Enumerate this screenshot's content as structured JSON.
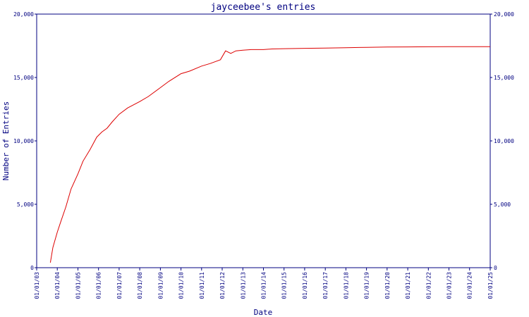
{
  "chart_data": {
    "type": "line",
    "title": "jayceebee's entries",
    "xlabel": "Date",
    "ylabel": "Number of Entries",
    "ylim": [
      0,
      20000
    ],
    "xlim": [
      "2003-01-01",
      "2025-01-01"
    ],
    "yticks": [
      0,
      5000,
      10000,
      15000,
      20000
    ],
    "ytick_labels": [
      "0",
      "5,000",
      "10,000",
      "15,000",
      "20,000"
    ],
    "xticks": [
      "2003-01-01",
      "2004-01-01",
      "2005-01-01",
      "2006-01-01",
      "2007-01-01",
      "2008-01-01",
      "2009-01-01",
      "2010-01-01",
      "2011-01-01",
      "2012-01-01",
      "2013-01-01",
      "2014-01-01",
      "2015-01-01",
      "2016-01-01",
      "2017-01-01",
      "2018-01-01",
      "2019-01-01",
      "2020-01-01",
      "2021-01-01",
      "2022-01-01",
      "2023-01-01",
      "2024-01-01",
      "2025-01-01"
    ],
    "xtick_labels": [
      "01/01/03",
      "01/01/04",
      "01/01/05",
      "01/01/06",
      "01/01/07",
      "01/01/08",
      "01/01/09",
      "01/01/10",
      "01/01/11",
      "01/01/12",
      "01/01/13",
      "01/01/14",
      "01/01/15",
      "01/01/16",
      "01/01/17",
      "01/01/18",
      "01/01/19",
      "01/01/20",
      "01/01/21",
      "01/01/22",
      "01/01/23",
      "01/01/24",
      "01/01/25"
    ],
    "grid": false,
    "legend": "none",
    "series": [
      {
        "color": "#dd0000",
        "x": [
          "2003-09-01",
          "2003-10-15",
          "2004-01-01",
          "2004-03-01",
          "2004-06-01",
          "2004-09-01",
          "2005-01-01",
          "2005-04-01",
          "2005-08-01",
          "2005-12-01",
          "2006-03-01",
          "2006-06-01",
          "2006-09-01",
          "2007-01-01",
          "2007-06-01",
          "2008-01-01",
          "2008-06-01",
          "2009-01-01",
          "2009-06-01",
          "2010-01-01",
          "2010-06-01",
          "2011-01-01",
          "2011-06-01",
          "2011-12-01",
          "2012-03-01",
          "2012-06-01",
          "2012-09-01",
          "2013-01-01",
          "2013-06-01",
          "2014-01-01",
          "2014-06-01",
          "2015-01-01",
          "2016-01-01",
          "2017-01-01",
          "2018-01-01",
          "2019-01-01",
          "2020-01-01",
          "2021-01-01",
          "2022-01-01",
          "2023-01-01",
          "2024-01-01",
          "2025-01-01"
        ],
        "y": [
          400,
          1600,
          2800,
          3600,
          4800,
          6200,
          7400,
          8400,
          9300,
          10300,
          10700,
          11000,
          11500,
          12100,
          12600,
          13100,
          13500,
          14200,
          14700,
          15300,
          15500,
          15900,
          16100,
          16400,
          17100,
          16900,
          17100,
          17150,
          17200,
          17200,
          17250,
          17270,
          17300,
          17320,
          17350,
          17380,
          17400,
          17410,
          17420,
          17430,
          17430,
          17430
        ]
      }
    ]
  }
}
